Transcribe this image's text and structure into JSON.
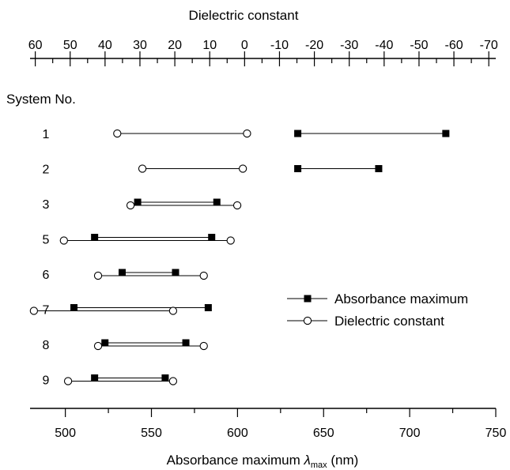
{
  "chart_data": {
    "type": "dumbbell",
    "top_axis": {
      "label": "Dielectric constant",
      "ticks": [
        60,
        50,
        40,
        30,
        20,
        10,
        0,
        -10,
        -20,
        -30,
        -40,
        -50,
        -60,
        -70
      ],
      "tick_labels": [
        "60",
        "50",
        "40",
        "30",
        "20",
        "10",
        "0",
        "-10",
        "-20",
        "-30",
        "-40",
        "-50",
        "-60",
        "-70"
      ],
      "range": [
        61.5,
        -72
      ]
    },
    "bottom_axis": {
      "label_main": "Absorbance maximum ",
      "label_symbol": "λ",
      "label_sub": "max",
      "label_unit": " (nm)",
      "ticks": [
        500,
        550,
        600,
        650,
        700,
        750
      ],
      "tick_labels": [
        "500",
        "550",
        "600",
        "650",
        "700",
        "750"
      ],
      "range": [
        479.5,
        750
      ]
    },
    "row_header": "System No.",
    "systems": [
      {
        "label": "1",
        "absorbance": [
          635,
          721
        ],
        "dielectric": [
          36.5,
          -0.7
        ]
      },
      {
        "label": "2",
        "absorbance": [
          635,
          682
        ],
        "dielectric": [
          29.3,
          0.5
        ]
      },
      {
        "label": "3",
        "absorbance": [
          542,
          588
        ],
        "dielectric": [
          32.7,
          2.1
        ]
      },
      {
        "label": "5",
        "absorbance": [
          517,
          585
        ],
        "dielectric": [
          51.8,
          4.0
        ]
      },
      {
        "label": "6",
        "absorbance": [
          533,
          564
        ],
        "dielectric": [
          42.0,
          11.7
        ]
      },
      {
        "label": "7",
        "absorbance": [
          505,
          583
        ],
        "dielectric": [
          60.4,
          20.5
        ]
      },
      {
        "label": "8",
        "absorbance": [
          523,
          570
        ],
        "dielectric": [
          42.0,
          11.7
        ]
      },
      {
        "label": "9",
        "absorbance": [
          517,
          558
        ],
        "dielectric": [
          50.6,
          20.5
        ]
      }
    ],
    "legend": {
      "position": "center-right",
      "items": [
        {
          "label": "Absorbance maximum",
          "marker": "filled-square"
        },
        {
          "label": "Dielectric constant",
          "marker": "open-circle"
        }
      ]
    },
    "grid": false,
    "colors": {
      "ink": "#000000",
      "background": "#ffffff"
    }
  }
}
